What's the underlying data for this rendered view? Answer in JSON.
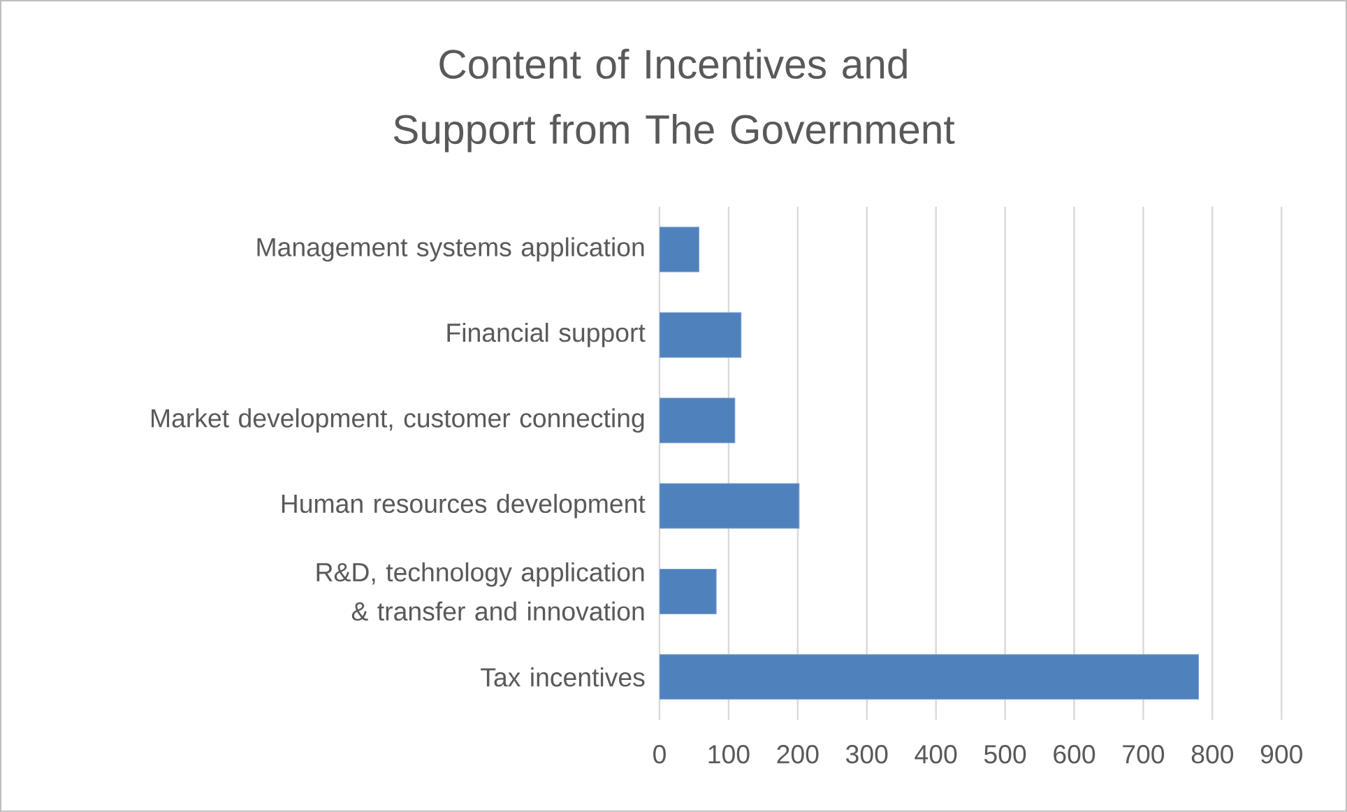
{
  "chart_data": {
    "type": "bar",
    "orientation": "horizontal",
    "title": "Content of Incentives and Support from The Government",
    "categories": [
      "Management systems application",
      "Financial support",
      "Market development, customer connecting",
      "Human resources development",
      "R&D, technology application & transfer and innovation",
      "Tax incentives"
    ],
    "values": [
      57,
      118,
      109,
      202,
      82,
      780
    ],
    "color": "#4f81bd",
    "xlim": [
      0,
      900
    ],
    "xticks": [
      0,
      100,
      200,
      300,
      400,
      500,
      600,
      700,
      800,
      900
    ],
    "grid": "x"
  }
}
